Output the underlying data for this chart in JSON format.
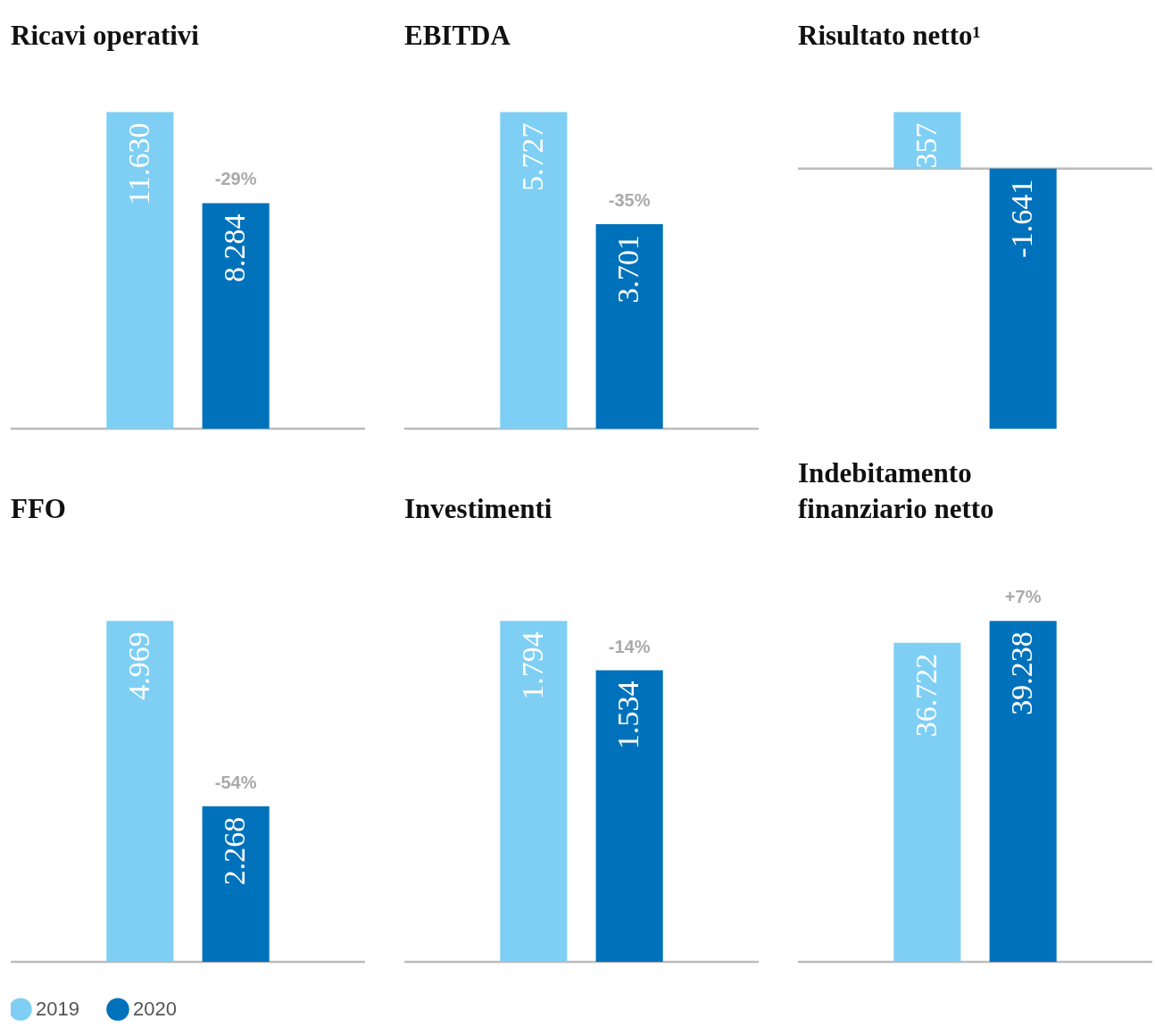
{
  "chart_data": [
    {
      "type": "bar",
      "title": "Ricavi operativi",
      "categories": [
        null
      ],
      "series": [
        {
          "color": "#7fcff4",
          "values": [
            11630
          ],
          "value_labels": [
            "11.630"
          ]
        },
        {
          "color": "#0072bc",
          "values": [
            8284
          ],
          "value_labels": [
            "8.284"
          ]
        }
      ],
      "annotations": [
        "-29%"
      ]
    },
    {
      "type": "bar",
      "title": "EBITDA",
      "categories": [
        null
      ],
      "series": [
        {
          "color": "#7fcff4",
          "values": [
            5727
          ],
          "value_labels": [
            "5.727"
          ]
        },
        {
          "color": "#0072bc",
          "values": [
            3701
          ],
          "value_labels": [
            "3.701"
          ]
        }
      ],
      "annotations": [
        "-35%"
      ]
    },
    {
      "type": "bar",
      "title": "Risultato netto¹",
      "categories": [
        null
      ],
      "series": [
        {
          "color": "#7fcff4",
          "values": [
            357
          ],
          "value_labels": [
            "357"
          ]
        },
        {
          "color": "#0072bc",
          "values": [
            -1641
          ],
          "value_labels": [
            "-1.641"
          ]
        }
      ]
    },
    {
      "type": "bar",
      "title": "FFO",
      "categories": [
        null
      ],
      "legend": "bottom left",
      "series": [
        {
          "name": "2019",
          "color": "#7fcff4",
          "values": [
            4969
          ],
          "value_labels": [
            "4.969"
          ]
        },
        {
          "name": "2020",
          "color": "#0072bc",
          "values": [
            2268
          ],
          "value_labels": [
            "2.268"
          ]
        }
      ],
      "annotations": [
        "-54%"
      ]
    },
    {
      "type": "bar",
      "title": "Investimenti",
      "categories": [
        null
      ],
      "series": [
        {
          "color": "#7fcff4",
          "values": [
            1794
          ],
          "value_labels": [
            "1.794"
          ]
        },
        {
          "color": "#0072bc",
          "values": [
            1534
          ],
          "value_labels": [
            "1.534"
          ]
        }
      ],
      "annotations": [
        "-14%"
      ]
    },
    {
      "type": "bar",
      "title": [
        "Indebitamento",
        "finanziario netto"
      ],
      "categories": [
        null
      ],
      "series": [
        {
          "color": "#7fcff4",
          "values": [
            36722
          ],
          "value_labels": [
            "36.722"
          ]
        },
        {
          "color": "#0072bc",
          "values": [
            39238
          ],
          "value_labels": [
            "39.238"
          ]
        }
      ],
      "annotations": [
        "+7%"
      ]
    }
  ]
}
